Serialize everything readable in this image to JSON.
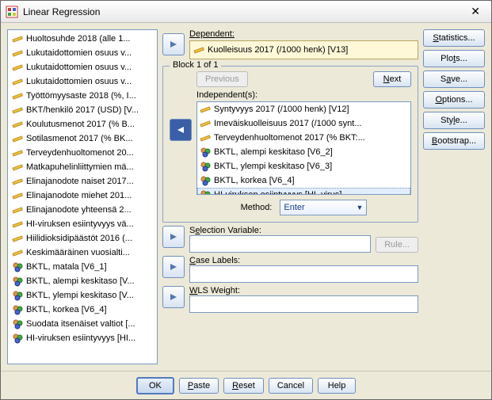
{
  "window": {
    "title": "Linear Regression"
  },
  "dependent": {
    "label": "Dependent:",
    "value": "Kuolleisuus 2017 (/1000 henk) [V13]",
    "icon": "scale"
  },
  "block": {
    "label": "Block 1 of 1",
    "previous": "Previous",
    "next": "Next",
    "independents_label": "Independent(s):",
    "method_label": "Method:",
    "method_value": "Enter"
  },
  "selection": {
    "label": "Selection Variable:",
    "rule": "Rule..."
  },
  "caselabels": {
    "label": "Case Labels:"
  },
  "wls": {
    "label": "WLS Weight:"
  },
  "sidebtns": {
    "statistics": "Statistics...",
    "plots": "Plots...",
    "save": "Save...",
    "options": "Options...",
    "style": "Style...",
    "bootstrap": "Bootstrap..."
  },
  "footer": {
    "ok": "OK",
    "paste": "Paste",
    "reset": "Reset",
    "cancel": "Cancel",
    "help": "Help"
  },
  "varlist": [
    {
      "icon": "scale",
      "label": "Huoltosuhde 2018 (alle 1..."
    },
    {
      "icon": "scale",
      "label": "Lukutaidottomien osuus v..."
    },
    {
      "icon": "scale",
      "label": "Lukutaidottomien osuus v..."
    },
    {
      "icon": "scale",
      "label": "Lukutaidottomien osuus v..."
    },
    {
      "icon": "scale",
      "label": "Työttömyysaste 2018 (%, I..."
    },
    {
      "icon": "scale",
      "label": "BKT/henkilö 2017 (USD) [V..."
    },
    {
      "icon": "scale",
      "label": "Koulutusmenot 2017 (% B..."
    },
    {
      "icon": "scale",
      "label": "Sotilasmenot 2017 (% BK..."
    },
    {
      "icon": "scale",
      "label": "Terveydenhuoltomenot 20..."
    },
    {
      "icon": "scale",
      "label": "Matkapuhelinliittymien mä..."
    },
    {
      "icon": "scale",
      "label": "Elinajanodote naiset 2017..."
    },
    {
      "icon": "scale",
      "label": "Elinajanodote miehet 201..."
    },
    {
      "icon": "scale",
      "label": "Elinajanodote yhteensä 2..."
    },
    {
      "icon": "scale",
      "label": "HI-viruksen esiintyvyys vä..."
    },
    {
      "icon": "scale",
      "label": "Hiilidioksidipäästöt 2016 (..."
    },
    {
      "icon": "scale",
      "label": "Keskimääräinen vuosialti..."
    },
    {
      "icon": "nominal",
      "label": "BKTL, matala [V6_1]"
    },
    {
      "icon": "nominal",
      "label": "BKTL, alempi keskitaso [V..."
    },
    {
      "icon": "nominal",
      "label": "BKTL, ylempi keskitaso [V..."
    },
    {
      "icon": "nominal",
      "label": "BKTL, korkea [V6_4]"
    },
    {
      "icon": "nominal",
      "label": "Suodata itsenäiset valtiot [..."
    },
    {
      "icon": "nominal",
      "label": "HI-viruksen esiintyvyys [HI..."
    }
  ],
  "indlist": [
    {
      "icon": "scale",
      "label": "Syntyvyys 2017 (/1000 henk) [V12]"
    },
    {
      "icon": "scale",
      "label": "Imeväiskuolleisuus 2017 (/1000 synt..."
    },
    {
      "icon": "scale",
      "label": "Terveydenhuoltomenot 2017 (% BKT:..."
    },
    {
      "icon": "nominal",
      "label": "BKTL, alempi keskitaso [V6_2]"
    },
    {
      "icon": "nominal",
      "label": "BKTL, ylempi keskitaso [V6_3]"
    },
    {
      "icon": "nominal",
      "label": "BKTL, korkea [V6_4]"
    },
    {
      "icon": "nominal",
      "label": "HI-viruksen esiintyvyys [HI_virus]",
      "sel": true
    }
  ]
}
